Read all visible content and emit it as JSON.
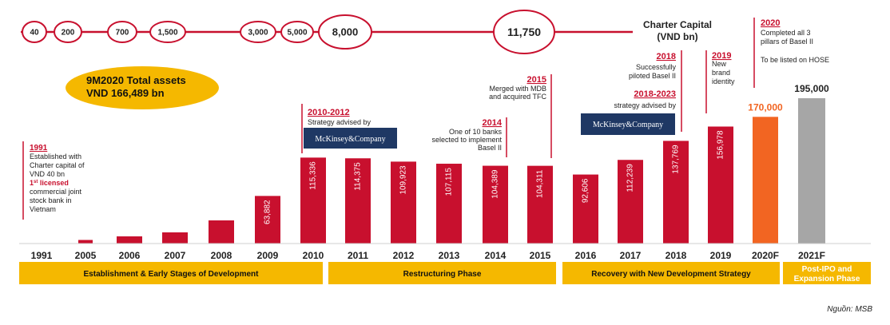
{
  "chart_data": {
    "type": "bar",
    "categories": [
      "1991",
      "2005",
      "2006",
      "2007",
      "2008",
      "2009",
      "2010",
      "2011",
      "2012",
      "2013",
      "2014",
      "2015",
      "2016",
      "2017",
      "2018",
      "2019",
      "2020F",
      "2021F"
    ],
    "values": [
      null,
      5000,
      10000,
      15000,
      20000,
      63882,
      115336,
      114375,
      109923,
      107115,
      104389,
      104311,
      92606,
      112239,
      137769,
      156978,
      170000,
      195000
    ],
    "labels": [
      "",
      "",
      "",
      "",
      "",
      "63,882",
      "115,336",
      "114,375",
      "109,923",
      "107,115",
      "104,389",
      "104,311",
      "92,606",
      "112,239",
      "137,769",
      "156,978",
      "170,000",
      "195,000"
    ],
    "bar_colors": {
      "actual": "#c8102e",
      "forecast_2020": "#f26522",
      "forecast_2021": "#a6a6a6"
    },
    "charter_capital": {
      "title_line1": "Charter Capital",
      "title_line2": "(VND bn)",
      "values": [
        "40",
        "200",
        "700",
        "1,500",
        "3,000",
        "5,000",
        "8,000",
        "11,750"
      ]
    },
    "total_assets_badge": {
      "line1": "9M2020 Total assets",
      "line2": "VND 166,489 bn"
    },
    "annotations": {
      "a1991": {
        "year": "1991",
        "t1": "Established with",
        "t2": "Charter capital of",
        "t3": "VND 40 bn",
        "t4a": "1",
        "t4b": "st",
        "t4c": " licensed",
        "t5": "commercial joint",
        "t6": "stock bank in",
        "t7": "Vietnam"
      },
      "a2010": {
        "year": "2010-2012",
        "t1": "Strategy advised by"
      },
      "a2014": {
        "year": "2014",
        "t1": "One of 10 banks",
        "t2": "selected to implement",
        "t3": "Basel II"
      },
      "a2015": {
        "year": "2015",
        "t1": "Merged with MDB",
        "t2": "and acquired TFC"
      },
      "a2018": {
        "year": "2018",
        "t1": "Successfully",
        "t2": "piloted Basel II"
      },
      "a2018_23": {
        "year": "2018-2023",
        "t1": "strategy advised by"
      },
      "a2019": {
        "year": "2019",
        "t1": "New",
        "t2": "brand",
        "t3": "identity"
      },
      "a2020": {
        "year": "2020",
        "t1": "Completed all 3",
        "t2": "pillars of Basel II",
        "t3": "To be listed on HOSE"
      },
      "mckinsey": "McKinsey&Company"
    },
    "phases": [
      {
        "label": "Establishment & Early Stages of Development"
      },
      {
        "label": "Restructuring Phase"
      },
      {
        "label": "Recovery with New Development Strategy"
      },
      {
        "label1": "Post-IPO and",
        "label2": "Expansion Phase"
      }
    ],
    "colors": {
      "red": "#c8102e",
      "gold": "#f5b800",
      "navy": "#1f3864"
    },
    "source": "Nguồn: MSB"
  }
}
